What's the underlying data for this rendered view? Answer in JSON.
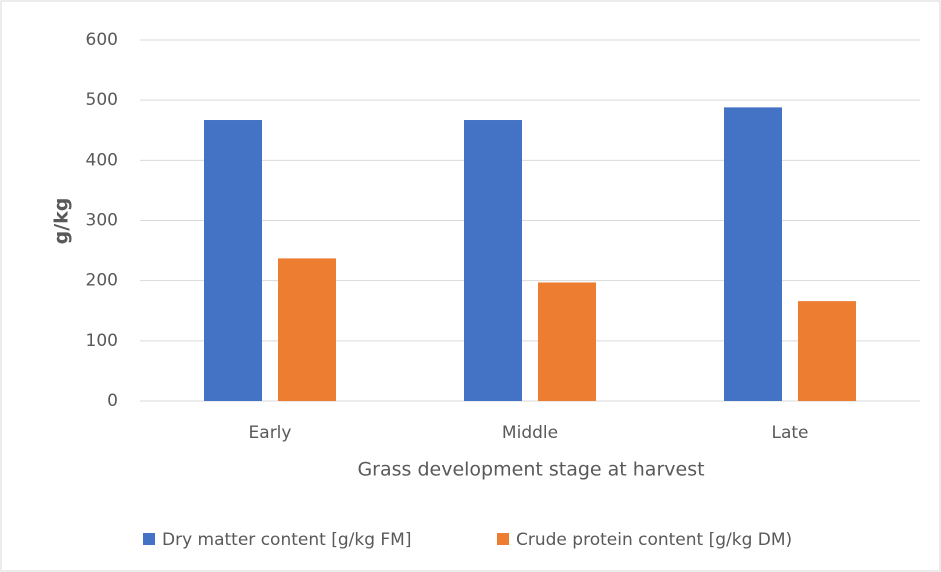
{
  "chart_data": {
    "type": "bar",
    "xlabel": "Grass development stage at harvest",
    "ylabel": "g/kg",
    "categories": [
      "Early",
      "Middle",
      "Late"
    ],
    "series": [
      {
        "name": "Dry matter content [g/kg FM]",
        "color": "#4472c4",
        "values": [
          467,
          467,
          488
        ]
      },
      {
        "name": "Crude protein content [g/kg DM)",
        "color": "#ed7d31",
        "values": [
          237,
          197,
          166
        ]
      }
    ],
    "ylim": [
      0,
      600
    ],
    "yticks": [
      0,
      100,
      200,
      300,
      400,
      500,
      600
    ],
    "grid": true,
    "legend": "bottom"
  }
}
